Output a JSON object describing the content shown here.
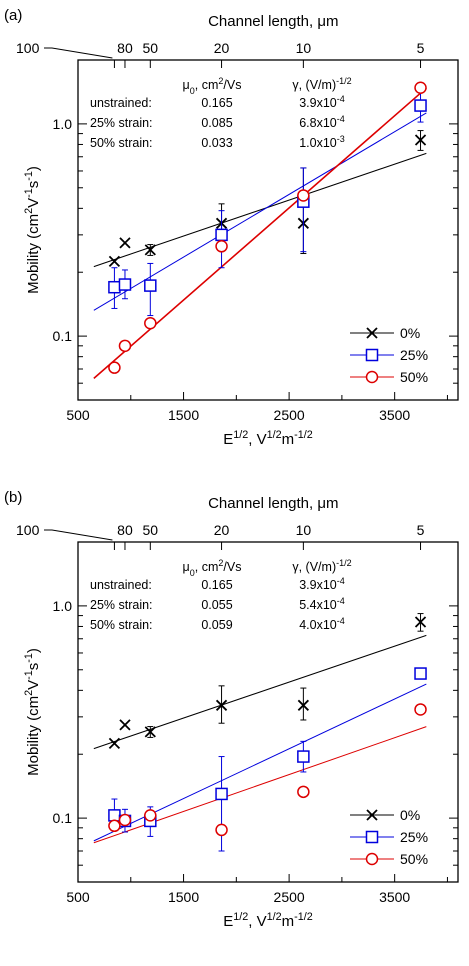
{
  "chart_data": [
    {
      "type": "scatter",
      "panel_label": "(a)",
      "xlabel_html": "E<sup>1/2</sup>, V<sup>1/2</sup>m<sup>-1/2</sup>",
      "xlabel": "E1/2, V1/2m-1/2",
      "ylabel": "Mobility (cm2V-1s-1)",
      "top_axis_label": "Channel length, μm",
      "top_ticks": [
        {
          "label": "100",
          "x": 845
        },
        {
          "label": "80",
          "x": 945
        },
        {
          "label": "50",
          "x": 1185
        },
        {
          "label": "20",
          "x": 1860
        },
        {
          "label": "10",
          "x": 2635
        },
        {
          "label": "5",
          "x": 3745
        }
      ],
      "xlim": [
        500,
        4100
      ],
      "ylim": [
        0.05,
        2.0
      ],
      "y_log": true,
      "x_ticks": [
        500,
        1500,
        2500,
        3500
      ],
      "y_ticks": [
        {
          "value": 0.1,
          "label": "0.1"
        },
        {
          "value": 1.0,
          "label": "1.0"
        }
      ],
      "param_table": {
        "header_mu": "μ0, cm2/Vs",
        "header_gamma": "γ, (V/m)-1/2",
        "rows": [
          {
            "label": "unstrained:",
            "mu": "0.165",
            "gamma": "3.9x10-4"
          },
          {
            "label": "25% strain:",
            "mu": "0.085",
            "gamma": "6.8x10-4"
          },
          {
            "label": "50% strain:",
            "mu": "0.033",
            "gamma": "1.0x10-3"
          }
        ]
      },
      "series": [
        {
          "name": "0%",
          "marker": "x",
          "color": "#000000",
          "points": [
            {
              "x": 845,
              "y": 0.225
            },
            {
              "x": 945,
              "y": 0.275
            },
            {
              "x": 1185,
              "y": 0.255,
              "err": [
                0.24,
                0.27
              ]
            },
            {
              "x": 1860,
              "y": 0.34,
              "err": [
                0.28,
                0.42
              ]
            },
            {
              "x": 2635,
              "y": 0.34,
              "err": [
                0.245,
                0.62
              ]
            },
            {
              "x": 3745,
              "y": 0.84,
              "err": [
                0.75,
                0.93
              ]
            }
          ],
          "fit": {
            "mu0": 0.165,
            "gamma": 0.00039
          }
        },
        {
          "name": "25%",
          "marker": "square",
          "color": "#0000dd",
          "points": [
            {
              "x": 845,
              "y": 0.17,
              "err": [
                0.135,
                0.21
              ]
            },
            {
              "x": 945,
              "y": 0.175,
              "err": [
                0.15,
                0.205
              ]
            },
            {
              "x": 1185,
              "y": 0.173,
              "err": [
                0.125,
                0.22
              ]
            },
            {
              "x": 1860,
              "y": 0.3,
              "err": [
                0.21,
                0.39
              ]
            },
            {
              "x": 2635,
              "y": 0.43,
              "err": [
                0.25,
                0.62
              ]
            },
            {
              "x": 3745,
              "y": 1.22,
              "err": [
                1.02,
                1.45
              ]
            }
          ],
          "fit": {
            "mu0": 0.085,
            "gamma": 0.00068
          }
        },
        {
          "name": "50%",
          "marker": "circle",
          "color": "#dd0000",
          "points": [
            {
              "x": 845,
              "y": 0.071
            },
            {
              "x": 945,
              "y": 0.09
            },
            {
              "x": 1185,
              "y": 0.115
            },
            {
              "x": 1860,
              "y": 0.265
            },
            {
              "x": 2635,
              "y": 0.46
            },
            {
              "x": 3745,
              "y": 1.48
            }
          ],
          "fit": {
            "mu0": 0.033,
            "gamma": 0.001
          }
        }
      ],
      "legend": {
        "position": "bottom-right",
        "entries": [
          "0%",
          "25%",
          "50%"
        ]
      }
    },
    {
      "type": "scatter",
      "panel_label": "(b)",
      "xlabel_html": "E<sup>1/2</sup>, V<sup>1/2</sup>m<sup>-1/2</sup>",
      "xlabel": "E1/2, V1/2m-1/2",
      "ylabel": "Mobility (cm2V-1s-1)",
      "top_axis_label": "Channel length, μm",
      "top_ticks": [
        {
          "label": "100",
          "x": 845
        },
        {
          "label": "80",
          "x": 945
        },
        {
          "label": "50",
          "x": 1185
        },
        {
          "label": "20",
          "x": 1860
        },
        {
          "label": "10",
          "x": 2635
        },
        {
          "label": "5",
          "x": 3745
        }
      ],
      "xlim": [
        500,
        4100
      ],
      "ylim": [
        0.05,
        2.0
      ],
      "y_log": true,
      "x_ticks": [
        500,
        1500,
        2500,
        3500
      ],
      "y_ticks": [
        {
          "value": 0.1,
          "label": "0.1"
        },
        {
          "value": 1.0,
          "label": "1.0"
        }
      ],
      "param_table": {
        "header_mu": "μ0, cm2/Vs",
        "header_gamma": "γ, (V/m)-1/2",
        "rows": [
          {
            "label": "unstrained:",
            "mu": "0.165",
            "gamma": "3.9x10-4"
          },
          {
            "label": "25% strain:",
            "mu": "0.055",
            "gamma": "5.4x10-4"
          },
          {
            "label": "50% strain:",
            "mu": "0.059",
            "gamma": "4.0x10-4"
          }
        ]
      },
      "series": [
        {
          "name": "0%",
          "marker": "x",
          "color": "#000000",
          "points": [
            {
              "x": 845,
              "y": 0.225
            },
            {
              "x": 945,
              "y": 0.275
            },
            {
              "x": 1185,
              "y": 0.255,
              "err": [
                0.24,
                0.27
              ]
            },
            {
              "x": 1860,
              "y": 0.34,
              "err": [
                0.28,
                0.42
              ]
            },
            {
              "x": 2635,
              "y": 0.34,
              "err": [
                0.29,
                0.41
              ]
            },
            {
              "x": 3745,
              "y": 0.84,
              "err": [
                0.76,
                0.92
              ]
            }
          ],
          "fit": {
            "mu0": 0.165,
            "gamma": 0.00039
          }
        },
        {
          "name": "25%",
          "marker": "square",
          "color": "#0000dd",
          "points": [
            {
              "x": 845,
              "y": 0.103,
              "err": [
                0.087,
                0.123
              ]
            },
            {
              "x": 945,
              "y": 0.097,
              "err": [
                0.086,
                0.11
              ]
            },
            {
              "x": 1185,
              "y": 0.097,
              "err": [
                0.082,
                0.113
              ]
            },
            {
              "x": 1860,
              "y": 0.13,
              "err": [
                0.07,
                0.195
              ]
            },
            {
              "x": 2635,
              "y": 0.195,
              "err": [
                0.165,
                0.23
              ]
            },
            {
              "x": 3745,
              "y": 0.48
            }
          ],
          "fit": {
            "mu0": 0.055,
            "gamma": 0.00054
          }
        },
        {
          "name": "50%",
          "marker": "circle",
          "color": "#dd0000",
          "points": [
            {
              "x": 845,
              "y": 0.092
            },
            {
              "x": 945,
              "y": 0.098
            },
            {
              "x": 1185,
              "y": 0.103
            },
            {
              "x": 1860,
              "y": 0.088
            },
            {
              "x": 2635,
              "y": 0.133
            },
            {
              "x": 3745,
              "y": 0.325
            }
          ],
          "fit": {
            "mu0": 0.059,
            "gamma": 0.0004
          }
        }
      ],
      "legend": {
        "position": "bottom-right",
        "entries": [
          "0%",
          "25%",
          "50%"
        ]
      }
    }
  ]
}
